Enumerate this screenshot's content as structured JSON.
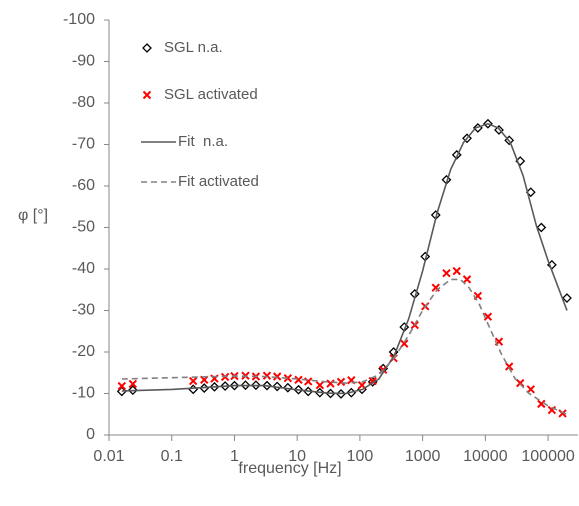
{
  "chart_data": {
    "type": "scatter-line",
    "x_label": "frequency [Hz]",
    "y_label": "φ [°]",
    "xscale": "log",
    "xlim": [
      0.01,
      300000
    ],
    "xticks": [
      0.01,
      0.1,
      1,
      10,
      100,
      1000,
      10000,
      100000
    ],
    "ylim": [
      0,
      -100
    ],
    "yticks": [
      0,
      -10,
      -20,
      -30,
      -40,
      -50,
      -60,
      -70,
      -80,
      -90,
      -100
    ],
    "grid": false,
    "legend": "top-left",
    "series": [
      {
        "name": "SGL n.a.",
        "color": "#000000",
        "style": "marker",
        "marker": "diamond",
        "x": [
          0.016,
          0.024,
          0.22,
          0.33,
          0.48,
          0.71,
          1,
          1.5,
          2.2,
          3.3,
          4.8,
          7.1,
          10.5,
          15,
          23,
          34,
          50,
          73,
          108,
          160,
          235,
          345,
          510,
          750,
          1100,
          1620,
          2400,
          3500,
          5100,
          7600,
          11000,
          16500,
          24000,
          36000,
          53000,
          78000,
          115000,
          200000
        ],
        "values": [
          -10.5,
          -10.8,
          -11,
          -11.3,
          -11.6,
          -11.8,
          -11.9,
          -12,
          -12,
          -11.9,
          -11.7,
          -11.4,
          -10.9,
          -10.5,
          -10.2,
          -10,
          -9.9,
          -10.2,
          -11,
          -12.8,
          -16,
          -20,
          -26,
          -34,
          -43,
          -53,
          -61.5,
          -67.5,
          -71.5,
          -74,
          -75,
          -73.5,
          -71,
          -66,
          -58.5,
          -50,
          -41,
          -33
        ]
      },
      {
        "name": "SGL activated",
        "color": "#ff0000",
        "style": "marker",
        "marker": "x",
        "x": [
          0.016,
          0.024,
          0.22,
          0.33,
          0.48,
          0.71,
          1,
          1.5,
          2.2,
          3.3,
          4.8,
          7.1,
          10.5,
          15,
          23,
          34,
          50,
          73,
          108,
          160,
          235,
          345,
          510,
          750,
          1100,
          1620,
          2400,
          3500,
          5100,
          7600,
          11000,
          16500,
          24000,
          36000,
          53000,
          78000,
          115000,
          170000
        ],
        "values": [
          -11.8,
          -12.3,
          -13,
          -13.3,
          -13.6,
          -14,
          -14.2,
          -14.3,
          -14.1,
          -14.3,
          -14.1,
          -13.7,
          -13.3,
          -12.9,
          -12,
          -12.4,
          -12.8,
          -13.2,
          -12,
          -13,
          -15.7,
          -18.5,
          -22,
          -26.5,
          -31,
          -35.5,
          -39,
          -39.5,
          -37.5,
          -33.5,
          -28.5,
          -22.5,
          -16.5,
          -12.5,
          -11,
          -7.5,
          -6,
          -5.2
        ]
      },
      {
        "name": "Fit  n.a.",
        "color": "#595959",
        "style": "line",
        "dash": false,
        "x": [
          0.016,
          0.1,
          0.3,
          1,
          3,
          10,
          30,
          60,
          110,
          200,
          350,
          600,
          1000,
          1700,
          2800,
          4500,
          7000,
          11000,
          16000,
          25000,
          40000,
          65000,
          100000,
          200000
        ],
        "values": [
          -10.6,
          -11,
          -11.4,
          -11.9,
          -11.9,
          -10.9,
          -10.1,
          -10,
          -11,
          -13.5,
          -19,
          -28,
          -39.5,
          -53.5,
          -64,
          -70.5,
          -74,
          -75,
          -74,
          -70.5,
          -62.5,
          -50.5,
          -42,
          -30
        ]
      },
      {
        "name": "Fit activated",
        "color": "#808080",
        "style": "line",
        "dash": true,
        "x": [
          0.016,
          0.1,
          0.3,
          1,
          3,
          10,
          30,
          60,
          110,
          200,
          350,
          600,
          1000,
          1700,
          2800,
          4000,
          5500,
          8000,
          12000,
          18000,
          30000,
          50000,
          100000,
          200000
        ],
        "values": [
          -13.5,
          -13.8,
          -14,
          -14.2,
          -14.1,
          -13.5,
          -12.8,
          -12.5,
          -12.8,
          -14.5,
          -18.5,
          -24,
          -30,
          -35,
          -37.5,
          -37.5,
          -35.5,
          -31.5,
          -25.5,
          -19.5,
          -13.5,
          -10,
          -7,
          -5
        ]
      }
    ]
  }
}
